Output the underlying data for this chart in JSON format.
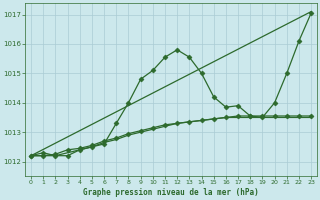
{
  "title": "Graphe pression niveau de la mer (hPa)",
  "bg_color": "#cce8ec",
  "grid_color": "#aaccd4",
  "line_color": "#2d6a2d",
  "xlim": [
    -0.5,
    23.5
  ],
  "ylim": [
    1011.5,
    1017.4
  ],
  "yticks": [
    1012,
    1013,
    1014,
    1015,
    1016,
    1017
  ],
  "xticks": [
    0,
    1,
    2,
    3,
    4,
    5,
    6,
    7,
    8,
    9,
    10,
    11,
    12,
    13,
    14,
    15,
    16,
    17,
    18,
    19,
    20,
    21,
    22,
    23
  ],
  "series1_x": [
    0,
    1,
    2,
    3,
    4,
    5,
    6,
    7,
    8,
    9,
    10,
    11,
    12,
    13,
    14,
    15,
    16,
    17,
    18,
    19,
    20,
    21,
    22,
    23
  ],
  "series1_y": [
    1012.2,
    1012.3,
    1012.2,
    1012.2,
    1012.4,
    1012.5,
    1012.6,
    1013.3,
    1014.0,
    1014.8,
    1015.1,
    1015.55,
    1015.8,
    1015.55,
    1015.0,
    1014.2,
    1013.85,
    1013.9,
    1013.55,
    1013.5,
    1014.0,
    1015.0,
    1016.1,
    1017.05
  ],
  "series2_x": [
    0,
    23
  ],
  "series2_y": [
    1012.2,
    1017.1
  ],
  "series3_x": [
    0,
    1,
    2,
    3,
    4,
    5,
    6,
    7,
    8,
    9,
    10,
    11,
    12,
    13,
    14,
    15,
    16,
    17,
    18,
    19,
    20,
    21,
    22,
    23
  ],
  "series3_y": [
    1012.2,
    1012.2,
    1012.25,
    1012.4,
    1012.45,
    1012.55,
    1012.7,
    1012.8,
    1012.95,
    1013.05,
    1013.15,
    1013.25,
    1013.3,
    1013.35,
    1013.4,
    1013.45,
    1013.5,
    1013.55,
    1013.55,
    1013.55,
    1013.55,
    1013.55,
    1013.55,
    1013.55
  ],
  "series4_x": [
    0,
    1,
    2,
    3,
    4,
    5,
    6,
    7,
    8,
    9,
    10,
    11,
    12,
    13,
    14,
    15,
    16,
    17,
    18,
    19,
    20,
    21,
    22,
    23
  ],
  "series4_y": [
    1012.2,
    1012.2,
    1012.2,
    1012.3,
    1012.4,
    1012.5,
    1012.65,
    1012.75,
    1012.9,
    1013.0,
    1013.1,
    1013.2,
    1013.3,
    1013.35,
    1013.4,
    1013.45,
    1013.5,
    1013.5,
    1013.5,
    1013.5,
    1013.5,
    1013.5,
    1013.5,
    1013.5
  ]
}
